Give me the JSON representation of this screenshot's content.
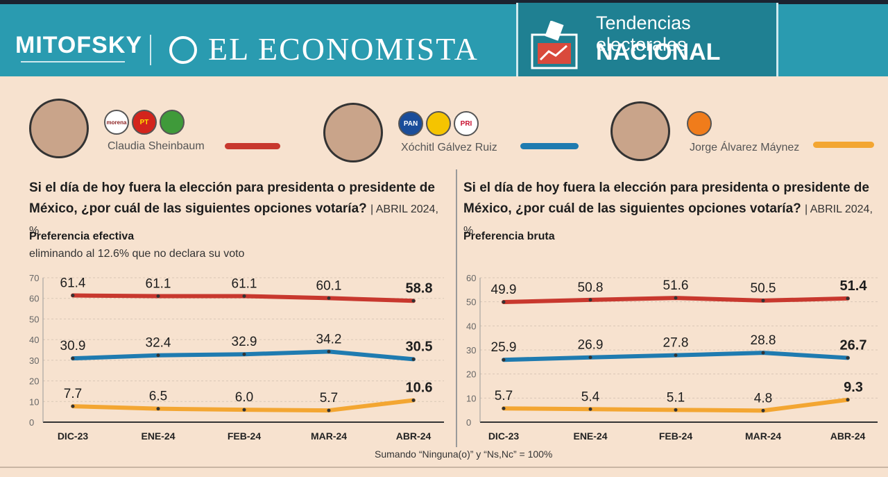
{
  "header": {
    "brand_left": "MITOFSKY",
    "brand_center": "EL ECONOMISTA",
    "section_title": "Tendencias electorales",
    "section_sub": "NACIONAL"
  },
  "candidates": [
    {
      "name": "Claudia Sheinbaum",
      "color": "#c8382e",
      "parties": [
        "morena",
        "PT",
        ""
      ]
    },
    {
      "name": "Xóchitl Gálvez Ruiz",
      "color": "#1f7bb0",
      "parties": [
        "PAN",
        "",
        "PRI"
      ]
    },
    {
      "name": "Jorge Álvarez Máynez",
      "color": "#f3a632",
      "parties": [
        ""
      ]
    }
  ],
  "panels": [
    {
      "question": "Si el día de hoy fuera la elección para presidenta o presidente de México, ¿por cuál de las siguientes opciones votaría?",
      "meta": "| ABRIL 2024, %",
      "subtitle": "Preferencia efectiva",
      "subtitle2": "eliminando al 12.6% que no declara su voto"
    },
    {
      "question": "Si el día de hoy fuera la elección para presidenta o presidente de México, ¿por cuál de las siguientes opciones votaría?",
      "meta": "| ABRIL 2024, %",
      "subtitle": "Preferencia bruta",
      "subtitle2": ""
    }
  ],
  "footer": {
    "note": "Sumando “Ninguna(o)” y “Ns,Nc” = 100%"
  },
  "chart_data": [
    {
      "type": "line",
      "categories": [
        "DIC-23",
        "ENE-24",
        "FEB-24",
        "MAR-24",
        "ABR-24"
      ],
      "ylim": [
        0,
        70
      ],
      "yticks": [
        0,
        10,
        20,
        30,
        40,
        50,
        60,
        70
      ],
      "grid": true,
      "series": [
        {
          "name": "Claudia Sheinbaum",
          "color": "#c8382e",
          "values": [
            61.4,
            61.1,
            61.1,
            60.1,
            58.8
          ]
        },
        {
          "name": "Xóchitl Gálvez Ruiz",
          "color": "#1f7bb0",
          "values": [
            30.9,
            32.4,
            32.9,
            34.2,
            30.5
          ]
        },
        {
          "name": "Jorge Álvarez Máynez",
          "color": "#f3a632",
          "values": [
            7.7,
            6.5,
            6.0,
            5.7,
            10.6
          ]
        }
      ]
    },
    {
      "type": "line",
      "categories": [
        "DIC-23",
        "ENE-24",
        "FEB-24",
        "MAR-24",
        "ABR-24"
      ],
      "ylim": [
        0,
        60
      ],
      "yticks": [
        0,
        10,
        20,
        30,
        40,
        50,
        60
      ],
      "grid": true,
      "series": [
        {
          "name": "Claudia Sheinbaum",
          "color": "#c8382e",
          "values": [
            49.9,
            50.8,
            51.6,
            50.5,
            51.4
          ]
        },
        {
          "name": "Xóchitl Gálvez Ruiz",
          "color": "#1f7bb0",
          "values": [
            25.9,
            26.9,
            27.8,
            28.8,
            26.7
          ]
        },
        {
          "name": "Jorge Álvarez Máynez",
          "color": "#f3a632",
          "values": [
            5.7,
            5.4,
            5.1,
            4.8,
            9.3
          ]
        }
      ]
    }
  ]
}
